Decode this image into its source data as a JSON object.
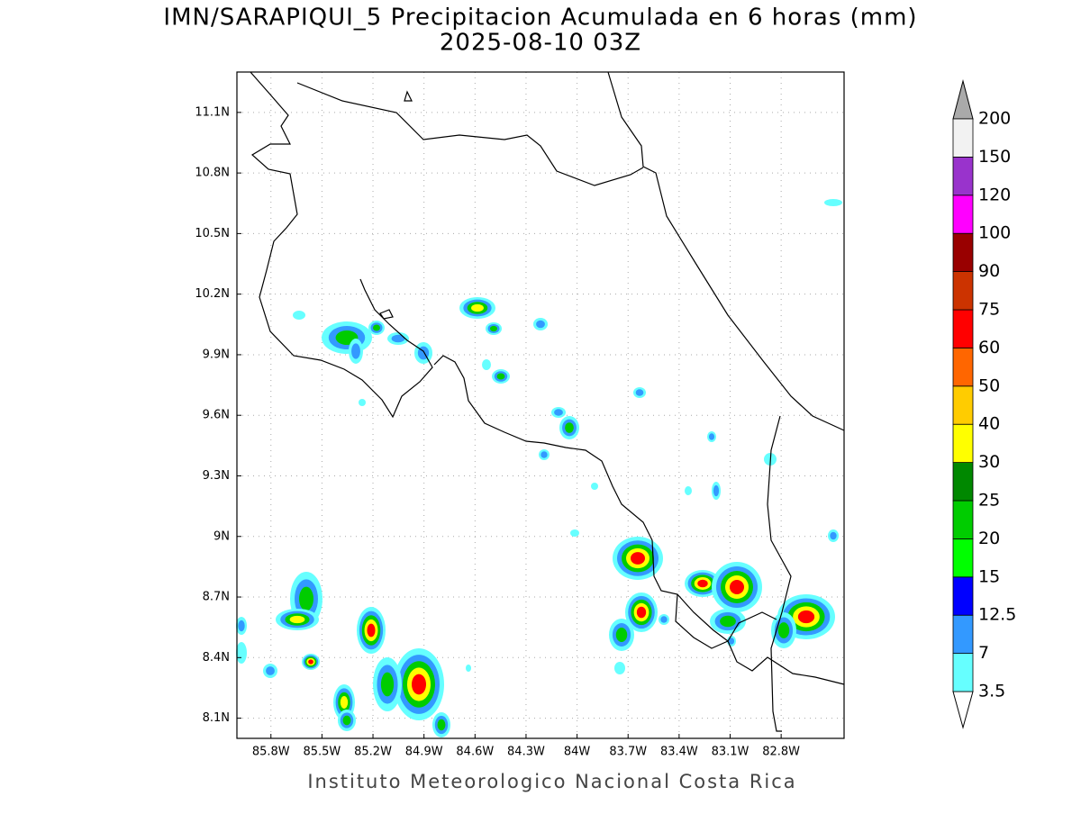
{
  "chart_data": {
    "type": "map",
    "title": "IMN/SARAPIQUI_5 Precipitacion Acumulada en 6 horas (mm)",
    "subtitle": "2025-08-10 03Z",
    "footer": "Instituto Meteorologico Nacional Costa Rica",
    "xlim": [
      -86.0,
      -82.43
    ],
    "ylim": [
      8.0,
      11.3
    ],
    "xticks": [
      {
        "value": -85.8,
        "label": "85.8W"
      },
      {
        "value": -85.5,
        "label": "85.5W"
      },
      {
        "value": -85.2,
        "label": "85.2W"
      },
      {
        "value": -84.9,
        "label": "84.9W"
      },
      {
        "value": -84.6,
        "label": "84.6W"
      },
      {
        "value": -84.3,
        "label": "84.3W"
      },
      {
        "value": -84.0,
        "label": "84W"
      },
      {
        "value": -83.7,
        "label": "83.7W"
      },
      {
        "value": -83.4,
        "label": "83.4W"
      },
      {
        "value": -83.1,
        "label": "83.1W"
      },
      {
        "value": -82.8,
        "label": "82.8W"
      }
    ],
    "yticks": [
      {
        "value": 8.1,
        "label": "8.1N"
      },
      {
        "value": 8.4,
        "label": "8.4N"
      },
      {
        "value": 8.7,
        "label": "8.7N"
      },
      {
        "value": 9.0,
        "label": "9N"
      },
      {
        "value": 9.3,
        "label": "9.3N"
      },
      {
        "value": 9.6,
        "label": "9.6N"
      },
      {
        "value": 9.9,
        "label": "9.9N"
      },
      {
        "value": 10.2,
        "label": "10.2N"
      },
      {
        "value": 10.5,
        "label": "10.5N"
      },
      {
        "value": 10.8,
        "label": "10.8N"
      },
      {
        "value": 11.1,
        "label": "11.1N"
      }
    ],
    "grid": true,
    "colorbar": {
      "levels": [
        3.5,
        7,
        12.5,
        15,
        20,
        25,
        30,
        40,
        50,
        60,
        75,
        90,
        100,
        120,
        150,
        200
      ],
      "colors": [
        "#66ffff",
        "#3399ff",
        "#0000ff",
        "#00ff00",
        "#00cc00",
        "#008800",
        "#ffff00",
        "#ffcc00",
        "#ff6600",
        "#ff0000",
        "#cc3300",
        "#990000",
        "#ff00ff",
        "#9933cc",
        "#f2f2f2"
      ],
      "under_color": "#ffffff",
      "over_color": "#aaaaaa"
    }
  }
}
